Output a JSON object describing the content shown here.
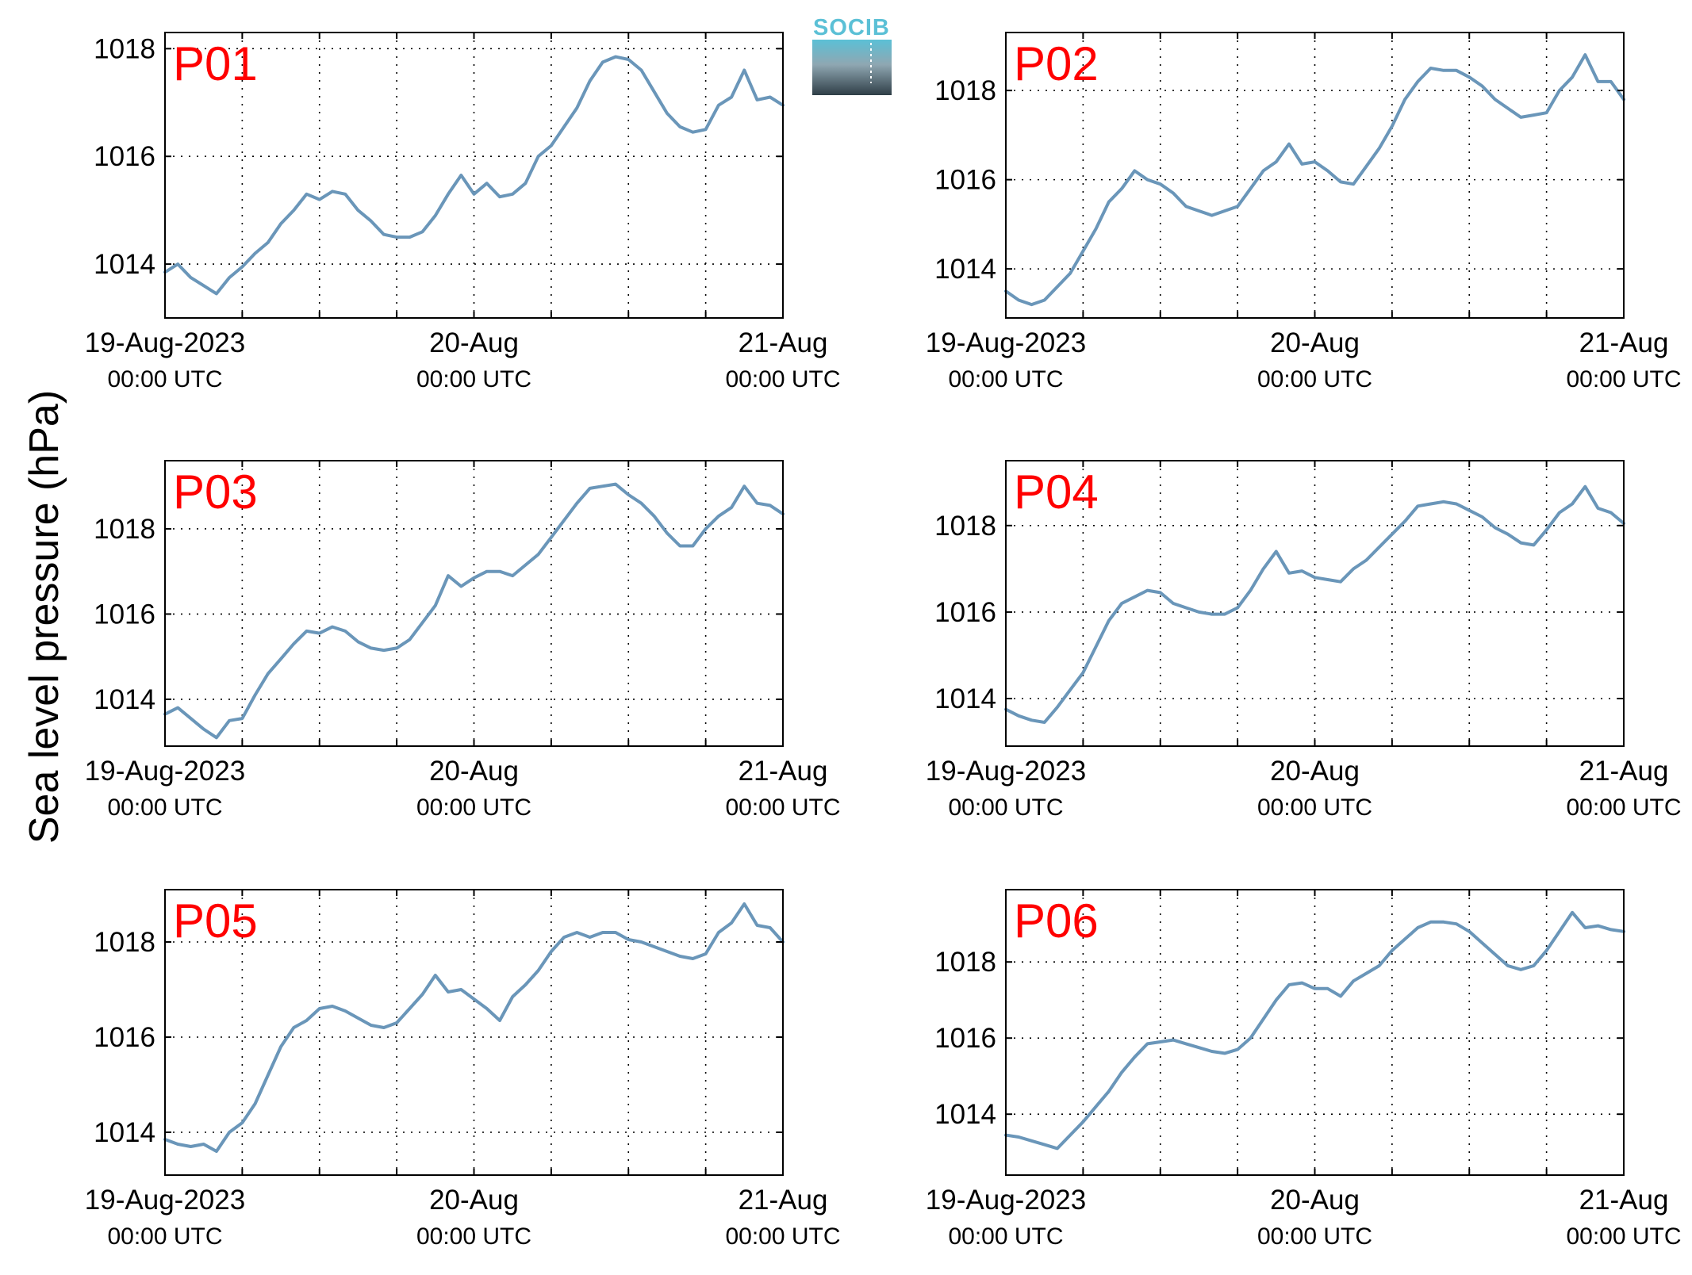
{
  "figure": {
    "ylabel": "Sea level pressure (hPa)",
    "logo_text": "SOCIB",
    "line_color": "#6a96b9",
    "title_color": "#ff0000",
    "logo_colors": [
      "#5bc0d6",
      "#8fa7b2",
      "#2f3e47"
    ]
  },
  "chart_data": [
    {
      "type": "line",
      "title": "P01",
      "xlim": [
        "2023-08-19T00:00",
        "2023-08-21T00:00"
      ],
      "x_ticks": [
        {
          "date": "19-Aug-2023",
          "time": "00:00 UTC"
        },
        {
          "date": "20-Aug",
          "time": "00:00 UTC"
        },
        {
          "date": "21-Aug",
          "time": "00:00 UTC"
        }
      ],
      "ylim": [
        1013,
        1018.3
      ],
      "yticks": [
        1014,
        1016,
        1018
      ],
      "grid": true,
      "x_hours": [
        0,
        1,
        2,
        3,
        4,
        5,
        6,
        7,
        8,
        9,
        10,
        11,
        12,
        13,
        14,
        15,
        16,
        17,
        18,
        19,
        20,
        21,
        22,
        23,
        24,
        25,
        26,
        27,
        28,
        29,
        30,
        31,
        32,
        33,
        34,
        35,
        36,
        37,
        38,
        39,
        40,
        41,
        42,
        43,
        44,
        45,
        46,
        47,
        48
      ],
      "values": [
        1013.85,
        1014.0,
        1013.75,
        1013.6,
        1013.45,
        1013.75,
        1013.95,
        1014.2,
        1014.4,
        1014.75,
        1015.0,
        1015.3,
        1015.2,
        1015.35,
        1015.3,
        1015.0,
        1014.8,
        1014.55,
        1014.5,
        1014.5,
        1014.6,
        1014.9,
        1015.3,
        1015.65,
        1015.3,
        1015.5,
        1015.25,
        1015.3,
        1015.5,
        1016.0,
        1016.2,
        1016.55,
        1016.9,
        1017.4,
        1017.75,
        1017.85,
        1017.8,
        1017.6,
        1017.2,
        1016.8,
        1016.55,
        1016.45,
        1016.5,
        1016.95,
        1017.1,
        1017.6,
        1017.05,
        1017.1,
        1016.95
      ]
    },
    {
      "type": "line",
      "title": "P02",
      "xlim": [
        "2023-08-19T00:00",
        "2023-08-21T00:00"
      ],
      "x_ticks": [
        {
          "date": "19-Aug-2023",
          "time": "00:00 UTC"
        },
        {
          "date": "20-Aug",
          "time": "00:00 UTC"
        },
        {
          "date": "21-Aug",
          "time": "00:00 UTC"
        }
      ],
      "ylim": [
        1012.9,
        1019.3
      ],
      "yticks": [
        1014,
        1016,
        1018
      ],
      "grid": true,
      "x_hours": [
        0,
        1,
        2,
        3,
        4,
        5,
        6,
        7,
        8,
        9,
        10,
        11,
        12,
        13,
        14,
        15,
        16,
        17,
        18,
        19,
        20,
        21,
        22,
        23,
        24,
        25,
        26,
        27,
        28,
        29,
        30,
        31,
        32,
        33,
        34,
        35,
        36,
        37,
        38,
        39,
        40,
        41,
        42,
        43,
        44,
        45,
        46,
        47,
        48
      ],
      "values": [
        1013.5,
        1013.3,
        1013.2,
        1013.3,
        1013.6,
        1013.9,
        1014.4,
        1014.9,
        1015.5,
        1015.8,
        1016.2,
        1016.0,
        1015.9,
        1015.7,
        1015.4,
        1015.3,
        1015.2,
        1015.3,
        1015.4,
        1015.8,
        1016.2,
        1016.4,
        1016.8,
        1016.35,
        1016.4,
        1016.2,
        1015.95,
        1015.9,
        1016.3,
        1016.7,
        1017.2,
        1017.8,
        1018.2,
        1018.5,
        1018.45,
        1018.45,
        1018.3,
        1018.1,
        1017.8,
        1017.6,
        1017.4,
        1017.45,
        1017.5,
        1018.0,
        1018.3,
        1018.8,
        1018.2,
        1018.2,
        1017.8
      ]
    },
    {
      "type": "line",
      "title": "P03",
      "xlim": [
        "2023-08-19T00:00",
        "2023-08-21T00:00"
      ],
      "x_ticks": [
        {
          "date": "19-Aug-2023",
          "time": "00:00 UTC"
        },
        {
          "date": "20-Aug",
          "time": "00:00 UTC"
        },
        {
          "date": "21-Aug",
          "time": "00:00 UTC"
        }
      ],
      "ylim": [
        1012.9,
        1019.6
      ],
      "yticks": [
        1014,
        1016,
        1018
      ],
      "grid": true,
      "x_hours": [
        0,
        1,
        2,
        3,
        4,
        5,
        6,
        7,
        8,
        9,
        10,
        11,
        12,
        13,
        14,
        15,
        16,
        17,
        18,
        19,
        20,
        21,
        22,
        23,
        24,
        25,
        26,
        27,
        28,
        29,
        30,
        31,
        32,
        33,
        34,
        35,
        36,
        37,
        38,
        39,
        40,
        41,
        42,
        43,
        44,
        45,
        46,
        47,
        48
      ],
      "values": [
        1013.65,
        1013.8,
        1013.55,
        1013.3,
        1013.1,
        1013.5,
        1013.55,
        1014.1,
        1014.6,
        1014.95,
        1015.3,
        1015.6,
        1015.55,
        1015.7,
        1015.6,
        1015.35,
        1015.2,
        1015.15,
        1015.2,
        1015.4,
        1015.8,
        1016.2,
        1016.9,
        1016.65,
        1016.85,
        1017.0,
        1017.0,
        1016.9,
        1017.15,
        1017.4,
        1017.8,
        1018.2,
        1018.6,
        1018.95,
        1019.0,
        1019.05,
        1018.8,
        1018.6,
        1018.3,
        1017.9,
        1017.6,
        1017.6,
        1018.0,
        1018.3,
        1018.5,
        1019.0,
        1018.6,
        1018.55,
        1018.35
      ]
    },
    {
      "type": "line",
      "title": "P04",
      "xlim": [
        "2023-08-19T00:00",
        "2023-08-21T00:00"
      ],
      "x_ticks": [
        {
          "date": "19-Aug-2023",
          "time": "00:00 UTC"
        },
        {
          "date": "20-Aug",
          "time": "00:00 UTC"
        },
        {
          "date": "21-Aug",
          "time": "00:00 UTC"
        }
      ],
      "ylim": [
        1012.9,
        1019.5
      ],
      "yticks": [
        1014,
        1016,
        1018
      ],
      "grid": true,
      "x_hours": [
        0,
        1,
        2,
        3,
        4,
        5,
        6,
        7,
        8,
        9,
        10,
        11,
        12,
        13,
        14,
        15,
        16,
        17,
        18,
        19,
        20,
        21,
        22,
        23,
        24,
        25,
        26,
        27,
        28,
        29,
        30,
        31,
        32,
        33,
        34,
        35,
        36,
        37,
        38,
        39,
        40,
        41,
        42,
        43,
        44,
        45,
        46,
        47,
        48
      ],
      "values": [
        1013.75,
        1013.6,
        1013.5,
        1013.45,
        1013.8,
        1014.2,
        1014.6,
        1015.2,
        1015.8,
        1016.2,
        1016.35,
        1016.5,
        1016.45,
        1016.2,
        1016.1,
        1016.0,
        1015.95,
        1015.95,
        1016.1,
        1016.5,
        1017.0,
        1017.4,
        1016.9,
        1016.95,
        1016.8,
        1016.75,
        1016.7,
        1017.0,
        1017.2,
        1017.5,
        1017.8,
        1018.1,
        1018.45,
        1018.5,
        1018.55,
        1018.5,
        1018.35,
        1018.2,
        1017.95,
        1017.8,
        1017.6,
        1017.55,
        1017.9,
        1018.3,
        1018.5,
        1018.9,
        1018.4,
        1018.3,
        1018.05
      ]
    },
    {
      "type": "line",
      "title": "P05",
      "xlim": [
        "2023-08-19T00:00",
        "2023-08-21T00:00"
      ],
      "x_ticks": [
        {
          "date": "19-Aug-2023",
          "time": "00:00 UTC"
        },
        {
          "date": "20-Aug",
          "time": "00:00 UTC"
        },
        {
          "date": "21-Aug",
          "time": "00:00 UTC"
        }
      ],
      "ylim": [
        1013.1,
        1019.1
      ],
      "yticks": [
        1014,
        1016,
        1018
      ],
      "grid": true,
      "x_hours": [
        0,
        1,
        2,
        3,
        4,
        5,
        6,
        7,
        8,
        9,
        10,
        11,
        12,
        13,
        14,
        15,
        16,
        17,
        18,
        19,
        20,
        21,
        22,
        23,
        24,
        25,
        26,
        27,
        28,
        29,
        30,
        31,
        32,
        33,
        34,
        35,
        36,
        37,
        38,
        39,
        40,
        41,
        42,
        43,
        44,
        45,
        46,
        47,
        48
      ],
      "values": [
        1013.85,
        1013.75,
        1013.7,
        1013.75,
        1013.6,
        1014.0,
        1014.2,
        1014.6,
        1015.2,
        1015.8,
        1016.2,
        1016.35,
        1016.6,
        1016.65,
        1016.55,
        1016.4,
        1016.25,
        1016.2,
        1016.3,
        1016.6,
        1016.9,
        1017.3,
        1016.95,
        1017.0,
        1016.8,
        1016.6,
        1016.35,
        1016.85,
        1017.1,
        1017.4,
        1017.8,
        1018.1,
        1018.2,
        1018.1,
        1018.2,
        1018.2,
        1018.05,
        1018.0,
        1017.9,
        1017.8,
        1017.7,
        1017.65,
        1017.75,
        1018.2,
        1018.4,
        1018.8,
        1018.35,
        1018.3,
        1018.0
      ]
    },
    {
      "type": "line",
      "title": "P06",
      "xlim": [
        "2023-08-19T00:00",
        "2023-08-21T00:00"
      ],
      "x_ticks": [
        {
          "date": "19-Aug-2023",
          "time": "00:00 UTC"
        },
        {
          "date": "20-Aug",
          "time": "00:00 UTC"
        },
        {
          "date": "21-Aug",
          "time": "00:00 UTC"
        }
      ],
      "ylim": [
        1012.4,
        1019.9
      ],
      "yticks": [
        1014,
        1016,
        1018
      ],
      "grid": true,
      "x_hours": [
        0,
        1,
        2,
        3,
        4,
        5,
        6,
        7,
        8,
        9,
        10,
        11,
        12,
        13,
        14,
        15,
        16,
        17,
        18,
        19,
        20,
        21,
        22,
        23,
        24,
        25,
        26,
        27,
        28,
        29,
        30,
        31,
        32,
        33,
        34,
        35,
        36,
        37,
        38,
        39,
        40,
        41,
        42,
        43,
        44,
        45,
        46,
        47,
        48
      ],
      "values": [
        1013.45,
        1013.4,
        1013.3,
        1013.2,
        1013.1,
        1013.45,
        1013.8,
        1014.2,
        1014.6,
        1015.1,
        1015.5,
        1015.85,
        1015.9,
        1015.95,
        1015.85,
        1015.75,
        1015.65,
        1015.6,
        1015.7,
        1016.0,
        1016.5,
        1017.0,
        1017.4,
        1017.45,
        1017.3,
        1017.3,
        1017.1,
        1017.5,
        1017.7,
        1017.9,
        1018.3,
        1018.6,
        1018.9,
        1019.05,
        1019.05,
        1019.0,
        1018.8,
        1018.5,
        1018.2,
        1017.9,
        1017.8,
        1017.9,
        1018.3,
        1018.8,
        1019.3,
        1018.9,
        1018.95,
        1018.85,
        1018.8
      ]
    }
  ]
}
